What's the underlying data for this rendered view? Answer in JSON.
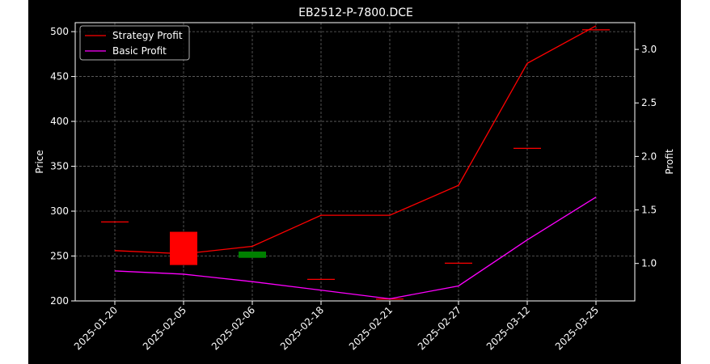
{
  "chart_data": {
    "type": "candlestick",
    "title": "EB2512-P-7800.DCE",
    "ylabel_left": "Price",
    "ylabel_right": "Profit",
    "xlabel": "",
    "categories": [
      "2025-01-20",
      "2025-02-05",
      "2025-02-06",
      "2025-02-18",
      "2025-02-21",
      "2025-02-27",
      "2025-03-12",
      "2025-03-25"
    ],
    "ylim_left": [
      200,
      510
    ],
    "yticks_left": [
      200,
      250,
      300,
      350,
      400,
      450,
      500
    ],
    "ylim_right": [
      0.65,
      3.25
    ],
    "yticks_right": [
      1.0,
      1.5,
      2.0,
      2.5,
      3.0
    ],
    "grid": true,
    "legend_position": "top-left",
    "candles": [
      {
        "date": "2025-01-20",
        "open": 288,
        "close": 288,
        "color": "#ff0000"
      },
      {
        "date": "2025-02-05",
        "open": 277,
        "close": 240,
        "color": "#ff0000"
      },
      {
        "date": "2025-02-06",
        "open": 248,
        "close": 255,
        "color": "#008000"
      },
      {
        "date": "2025-02-18",
        "open": 224,
        "close": 224,
        "color": "#ff0000"
      },
      {
        "date": "2025-02-21",
        "open": 202,
        "close": 202,
        "color": "#ff0000"
      },
      {
        "date": "2025-02-27",
        "open": 242,
        "close": 242,
        "color": "#ff0000"
      },
      {
        "date": "2025-03-12",
        "open": 370,
        "close": 370,
        "color": "#ff0000"
      },
      {
        "date": "2025-03-25",
        "open": 502,
        "close": 502,
        "color": "#ff0000"
      }
    ],
    "series": [
      {
        "name": "Strategy Profit",
        "color": "#ff0000",
        "axis": "right",
        "values": [
          1.12,
          1.09,
          1.16,
          1.45,
          1.45,
          1.73,
          2.87,
          3.22
        ]
      },
      {
        "name": "Basic Profit",
        "color": "#ff00ff",
        "axis": "right",
        "values": [
          0.93,
          0.9,
          0.83,
          0.75,
          0.67,
          0.79,
          1.22,
          1.62
        ]
      }
    ]
  }
}
